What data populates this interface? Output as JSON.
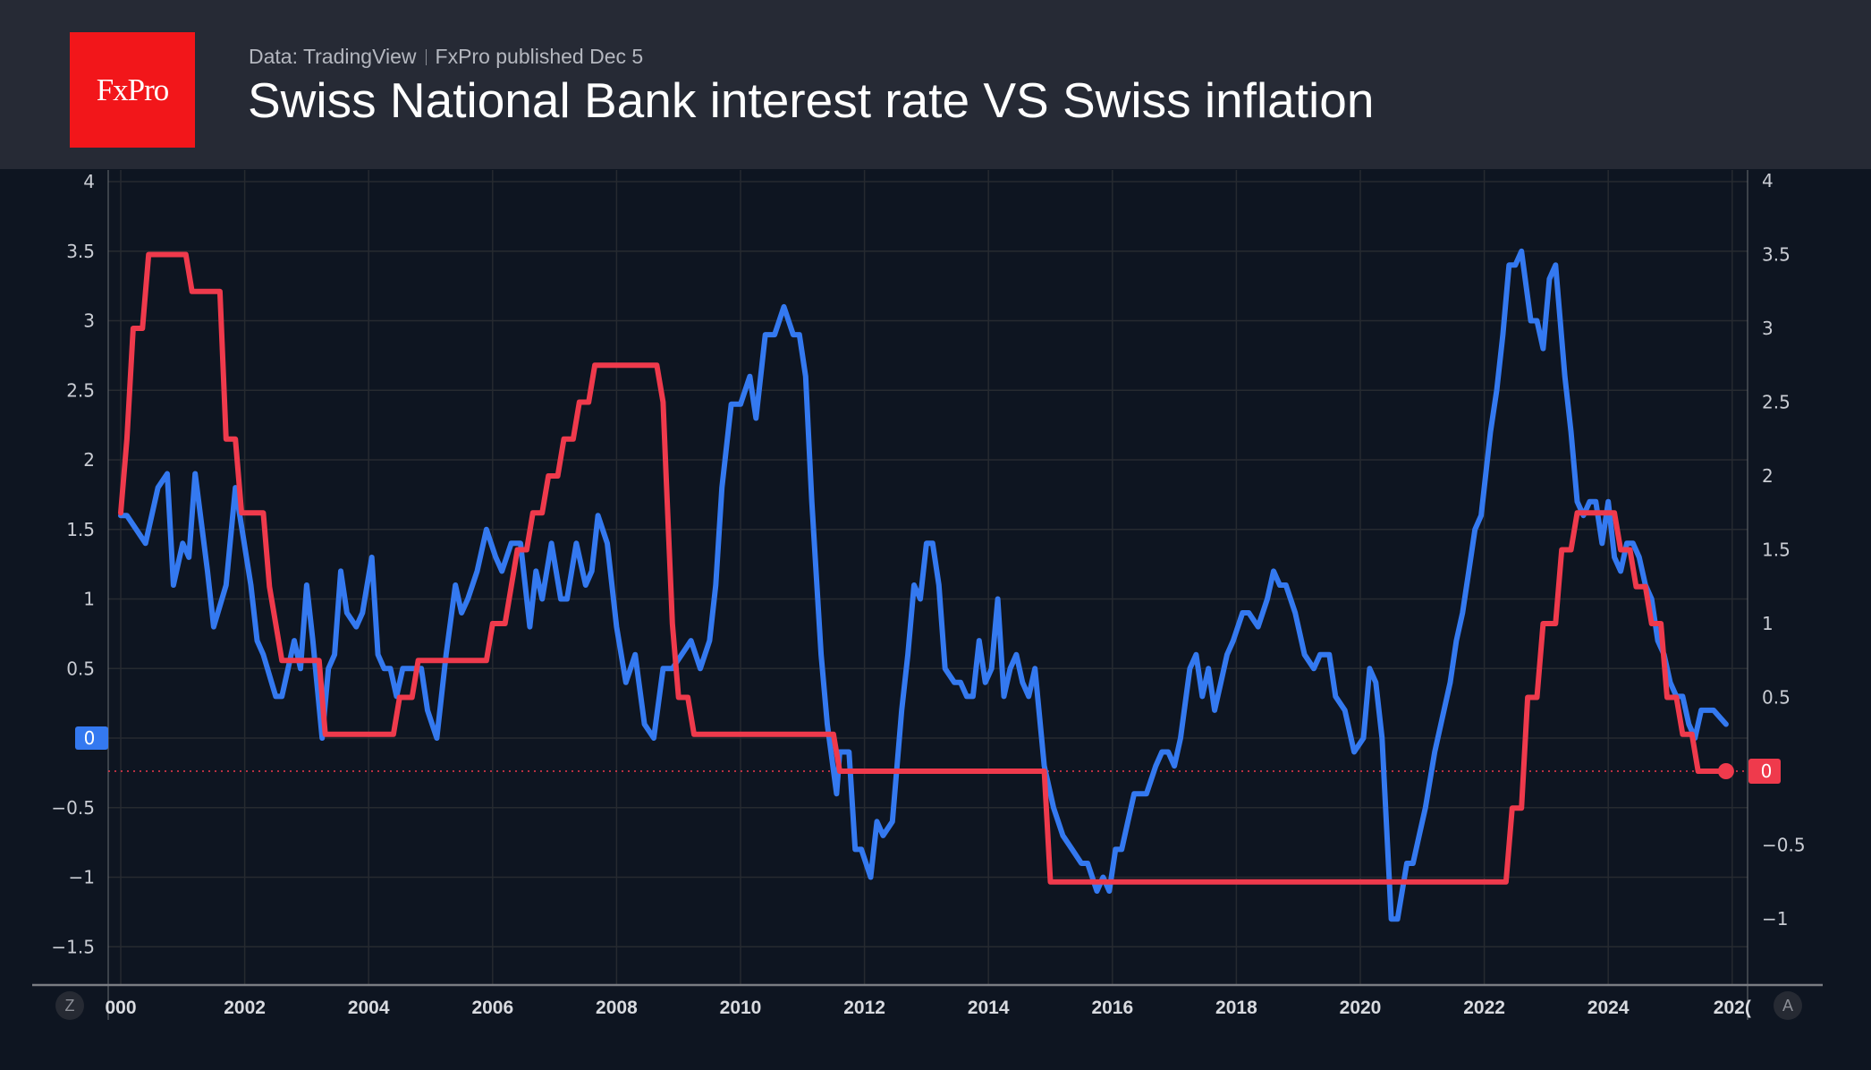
{
  "header": {
    "logo_text": "FxPro",
    "source": "Data: TradingView",
    "publisher": "FxPro published Dec 5",
    "title": "Swiss National Bank interest rate VS Swiss inflation"
  },
  "controls": {
    "left_button": "Z",
    "right_button": "A"
  },
  "colors": {
    "inflation": "#3479f0",
    "rate": "#ef3a4c",
    "background": "#0e1521",
    "header": "#262a35",
    "logo": "#f2161a"
  },
  "chart_data": {
    "type": "line",
    "title": "Swiss National Bank interest rate VS Swiss inflation",
    "grid": true,
    "x_ticks": [
      "000",
      "2002",
      "2004",
      "2006",
      "2008",
      "2010",
      "2012",
      "2014",
      "2016",
      "2018",
      "2020",
      "2022",
      "2024",
      "202("
    ],
    "xlim": [
      1999.8,
      2026.1
    ],
    "left_axis": {
      "ticks": [
        "4",
        "3.5",
        "3",
        "2.5",
        "2",
        "1.5",
        "1",
        "0.5",
        "0",
        "−0.5",
        "−1",
        "−1.5"
      ],
      "ylim": [
        -1.75,
        4.05
      ],
      "badge": "0"
    },
    "right_axis": {
      "ticks": [
        "4",
        "3.5",
        "3",
        "2.5",
        "2",
        "1.5",
        "1",
        "0.5",
        "0",
        "−0.5",
        "−1"
      ],
      "ylim": [
        -1.25,
        4.05
      ],
      "badge": "0"
    },
    "series": [
      {
        "name": "Swiss inflation",
        "axis": "left",
        "points": [
          [
            2000.0,
            1.6
          ],
          [
            2000.1,
            1.6
          ],
          [
            2000.4,
            1.4
          ],
          [
            2000.6,
            1.8
          ],
          [
            2000.75,
            1.9
          ],
          [
            2000.85,
            1.1
          ],
          [
            2001.0,
            1.4
          ],
          [
            2001.1,
            1.3
          ],
          [
            2001.2,
            1.9
          ],
          [
            2001.4,
            1.2
          ],
          [
            2001.5,
            0.8
          ],
          [
            2001.7,
            1.1
          ],
          [
            2001.85,
            1.8
          ],
          [
            2002.1,
            1.1
          ],
          [
            2002.2,
            0.7
          ],
          [
            2002.3,
            0.6
          ],
          [
            2002.5,
            0.3
          ],
          [
            2002.6,
            0.3
          ],
          [
            2002.8,
            0.7
          ],
          [
            2002.9,
            0.5
          ],
          [
            2003.0,
            1.1
          ],
          [
            2003.1,
            0.7
          ],
          [
            2003.25,
            0.0
          ],
          [
            2003.35,
            0.5
          ],
          [
            2003.45,
            0.6
          ],
          [
            2003.55,
            1.2
          ],
          [
            2003.65,
            0.9
          ],
          [
            2003.8,
            0.8
          ],
          [
            2003.9,
            0.9
          ],
          [
            2004.05,
            1.3
          ],
          [
            2004.15,
            0.6
          ],
          [
            2004.25,
            0.5
          ],
          [
            2004.35,
            0.5
          ],
          [
            2004.45,
            0.3
          ],
          [
            2004.55,
            0.5
          ],
          [
            2004.7,
            0.5
          ],
          [
            2004.85,
            0.5
          ],
          [
            2004.95,
            0.2
          ],
          [
            2005.1,
            0.0
          ],
          [
            2005.25,
            0.6
          ],
          [
            2005.4,
            1.1
          ],
          [
            2005.5,
            0.9
          ],
          [
            2005.6,
            1.0
          ],
          [
            2005.75,
            1.2
          ],
          [
            2005.9,
            1.5
          ],
          [
            2006.05,
            1.3
          ],
          [
            2006.15,
            1.2
          ],
          [
            2006.3,
            1.4
          ],
          [
            2006.45,
            1.4
          ],
          [
            2006.6,
            0.8
          ],
          [
            2006.7,
            1.2
          ],
          [
            2006.8,
            1.0
          ],
          [
            2006.95,
            1.4
          ],
          [
            2007.1,
            1.0
          ],
          [
            2007.2,
            1.0
          ],
          [
            2007.35,
            1.4
          ],
          [
            2007.5,
            1.1
          ],
          [
            2007.6,
            1.2
          ],
          [
            2007.7,
            1.6
          ],
          [
            2007.85,
            1.4
          ],
          [
            2008.0,
            0.8
          ],
          [
            2008.15,
            0.4
          ],
          [
            2008.3,
            0.6
          ],
          [
            2008.45,
            0.1
          ],
          [
            2008.6,
            0.0
          ],
          [
            2008.75,
            0.5
          ],
          [
            2008.9,
            0.5
          ],
          [
            2009.05,
            0.6
          ],
          [
            2009.2,
            0.7
          ],
          [
            2009.35,
            0.5
          ],
          [
            2009.5,
            0.7
          ],
          [
            2009.6,
            1.1
          ],
          [
            2009.7,
            1.8
          ],
          [
            2009.85,
            2.4
          ],
          [
            2010.0,
            2.4
          ],
          [
            2010.15,
            2.6
          ],
          [
            2010.25,
            2.3
          ],
          [
            2010.4,
            2.9
          ],
          [
            2010.55,
            2.9
          ],
          [
            2010.7,
            3.1
          ],
          [
            2010.85,
            2.9
          ],
          [
            2010.95,
            2.9
          ],
          [
            2011.05,
            2.6
          ],
          [
            2011.15,
            1.7
          ],
          [
            2011.3,
            0.6
          ],
          [
            2011.4,
            0.1
          ],
          [
            2011.55,
            -0.4
          ],
          [
            2011.6,
            -0.1
          ],
          [
            2011.75,
            -0.1
          ],
          [
            2011.85,
            -0.8
          ],
          [
            2011.95,
            -0.8
          ],
          [
            2012.1,
            -1.0
          ],
          [
            2012.2,
            -0.6
          ],
          [
            2012.3,
            -0.7
          ],
          [
            2012.45,
            -0.6
          ],
          [
            2012.6,
            0.2
          ],
          [
            2012.7,
            0.6
          ],
          [
            2012.8,
            1.1
          ],
          [
            2012.9,
            1.0
          ],
          [
            2013.0,
            1.4
          ],
          [
            2013.1,
            1.4
          ],
          [
            2013.2,
            1.1
          ],
          [
            2013.3,
            0.5
          ],
          [
            2013.45,
            0.4
          ],
          [
            2013.55,
            0.4
          ],
          [
            2013.65,
            0.3
          ],
          [
            2013.75,
            0.3
          ],
          [
            2013.85,
            0.7
          ],
          [
            2013.95,
            0.4
          ],
          [
            2014.05,
            0.5
          ],
          [
            2014.15,
            1.0
          ],
          [
            2014.25,
            0.3
          ],
          [
            2014.35,
            0.5
          ],
          [
            2014.45,
            0.6
          ],
          [
            2014.55,
            0.4
          ],
          [
            2014.65,
            0.3
          ],
          [
            2014.75,
            0.5
          ],
          [
            2014.9,
            -0.2
          ],
          [
            2015.05,
            -0.5
          ],
          [
            2015.2,
            -0.7
          ],
          [
            2015.35,
            -0.8
          ],
          [
            2015.5,
            -0.9
          ],
          [
            2015.6,
            -0.9
          ],
          [
            2015.75,
            -1.1
          ],
          [
            2015.85,
            -1.0
          ],
          [
            2015.95,
            -1.1
          ],
          [
            2016.05,
            -0.8
          ],
          [
            2016.15,
            -0.8
          ],
          [
            2016.25,
            -0.6
          ],
          [
            2016.35,
            -0.4
          ],
          [
            2016.45,
            -0.4
          ],
          [
            2016.55,
            -0.4
          ],
          [
            2016.7,
            -0.2
          ],
          [
            2016.8,
            -0.1
          ],
          [
            2016.9,
            -0.1
          ],
          [
            2017.0,
            -0.2
          ],
          [
            2017.1,
            0.0
          ],
          [
            2017.25,
            0.5
          ],
          [
            2017.35,
            0.6
          ],
          [
            2017.45,
            0.3
          ],
          [
            2017.55,
            0.5
          ],
          [
            2017.65,
            0.2
          ],
          [
            2017.75,
            0.4
          ],
          [
            2017.85,
            0.6
          ],
          [
            2017.95,
            0.7
          ],
          [
            2018.1,
            0.9
          ],
          [
            2018.2,
            0.9
          ],
          [
            2018.35,
            0.8
          ],
          [
            2018.5,
            1.0
          ],
          [
            2018.6,
            1.2
          ],
          [
            2018.7,
            1.1
          ],
          [
            2018.8,
            1.1
          ],
          [
            2018.95,
            0.9
          ],
          [
            2019.1,
            0.6
          ],
          [
            2019.25,
            0.5
          ],
          [
            2019.35,
            0.6
          ],
          [
            2019.5,
            0.6
          ],
          [
            2019.6,
            0.3
          ],
          [
            2019.75,
            0.2
          ],
          [
            2019.9,
            -0.1
          ],
          [
            2020.05,
            0.0
          ],
          [
            2020.15,
            0.5
          ],
          [
            2020.25,
            0.4
          ],
          [
            2020.35,
            0.0
          ],
          [
            2020.5,
            -1.3
          ],
          [
            2020.6,
            -1.3
          ],
          [
            2020.75,
            -0.9
          ],
          [
            2020.85,
            -0.9
          ],
          [
            2020.95,
            -0.7
          ],
          [
            2021.05,
            -0.5
          ],
          [
            2021.2,
            -0.1
          ],
          [
            2021.3,
            0.1
          ],
          [
            2021.45,
            0.4
          ],
          [
            2021.55,
            0.7
          ],
          [
            2021.65,
            0.9
          ],
          [
            2021.75,
            1.2
          ],
          [
            2021.85,
            1.5
          ],
          [
            2021.95,
            1.6
          ],
          [
            2022.1,
            2.2
          ],
          [
            2022.2,
            2.5
          ],
          [
            2022.3,
            2.9
          ],
          [
            2022.4,
            3.4
          ],
          [
            2022.5,
            3.4
          ],
          [
            2022.6,
            3.5
          ],
          [
            2022.75,
            3.0
          ],
          [
            2022.85,
            3.0
          ],
          [
            2022.95,
            2.8
          ],
          [
            2023.05,
            3.3
          ],
          [
            2023.15,
            3.4
          ],
          [
            2023.3,
            2.6
          ],
          [
            2023.4,
            2.2
          ],
          [
            2023.5,
            1.7
          ],
          [
            2023.6,
            1.6
          ],
          [
            2023.7,
            1.7
          ],
          [
            2023.8,
            1.7
          ],
          [
            2023.9,
            1.4
          ],
          [
            2024.0,
            1.7
          ],
          [
            2024.1,
            1.3
          ],
          [
            2024.2,
            1.2
          ],
          [
            2024.3,
            1.4
          ],
          [
            2024.4,
            1.4
          ],
          [
            2024.5,
            1.3
          ],
          [
            2024.6,
            1.1
          ],
          [
            2024.7,
            1.0
          ],
          [
            2024.8,
            0.7
          ],
          [
            2024.9,
            0.6
          ],
          [
            2025.0,
            0.4
          ],
          [
            2025.1,
            0.3
          ],
          [
            2025.2,
            0.3
          ],
          [
            2025.3,
            0.1
          ],
          [
            2025.4,
            0.0
          ],
          [
            2025.5,
            0.2
          ],
          [
            2025.7,
            0.2
          ],
          [
            2025.9,
            0.1
          ]
        ]
      },
      {
        "name": "SNB interest rate",
        "axis": "right",
        "points": [
          [
            2000.0,
            1.75
          ],
          [
            2000.1,
            2.25
          ],
          [
            2000.2,
            3.0
          ],
          [
            2000.35,
            3.0
          ],
          [
            2000.45,
            3.5
          ],
          [
            2001.05,
            3.5
          ],
          [
            2001.15,
            3.25
          ],
          [
            2001.6,
            3.25
          ],
          [
            2001.7,
            2.25
          ],
          [
            2001.85,
            2.25
          ],
          [
            2001.95,
            1.75
          ],
          [
            2002.3,
            1.75
          ],
          [
            2002.4,
            1.25
          ],
          [
            2002.6,
            0.75
          ],
          [
            2003.2,
            0.75
          ],
          [
            2003.3,
            0.25
          ],
          [
            2004.4,
            0.25
          ],
          [
            2004.5,
            0.5
          ],
          [
            2004.7,
            0.5
          ],
          [
            2004.8,
            0.75
          ],
          [
            2005.9,
            0.75
          ],
          [
            2006.0,
            1.0
          ],
          [
            2006.2,
            1.0
          ],
          [
            2006.3,
            1.25
          ],
          [
            2006.4,
            1.5
          ],
          [
            2006.55,
            1.5
          ],
          [
            2006.65,
            1.75
          ],
          [
            2006.8,
            1.75
          ],
          [
            2006.9,
            2.0
          ],
          [
            2007.05,
            2.0
          ],
          [
            2007.15,
            2.25
          ],
          [
            2007.3,
            2.25
          ],
          [
            2007.4,
            2.5
          ],
          [
            2007.55,
            2.5
          ],
          [
            2007.65,
            2.75
          ],
          [
            2008.65,
            2.75
          ],
          [
            2008.75,
            2.5
          ],
          [
            2008.8,
            2.0
          ],
          [
            2008.9,
            1.0
          ],
          [
            2009.0,
            0.5
          ],
          [
            2009.15,
            0.5
          ],
          [
            2009.25,
            0.25
          ],
          [
            2011.5,
            0.25
          ],
          [
            2011.6,
            0.0
          ],
          [
            2014.9,
            0.0
          ],
          [
            2015.0,
            -0.75
          ],
          [
            2022.35,
            -0.75
          ],
          [
            2022.45,
            -0.25
          ],
          [
            2022.6,
            -0.25
          ],
          [
            2022.7,
            0.5
          ],
          [
            2022.85,
            0.5
          ],
          [
            2022.95,
            1.0
          ],
          [
            2023.15,
            1.0
          ],
          [
            2023.25,
            1.5
          ],
          [
            2023.4,
            1.5
          ],
          [
            2023.5,
            1.75
          ],
          [
            2024.1,
            1.75
          ],
          [
            2024.2,
            1.5
          ],
          [
            2024.35,
            1.5
          ],
          [
            2024.45,
            1.25
          ],
          [
            2024.6,
            1.25
          ],
          [
            2024.7,
            1.0
          ],
          [
            2024.85,
            1.0
          ],
          [
            2024.95,
            0.5
          ],
          [
            2025.1,
            0.5
          ],
          [
            2025.2,
            0.25
          ],
          [
            2025.35,
            0.25
          ],
          [
            2025.45,
            0.0
          ],
          [
            2025.9,
            0.0
          ]
        ]
      }
    ]
  }
}
